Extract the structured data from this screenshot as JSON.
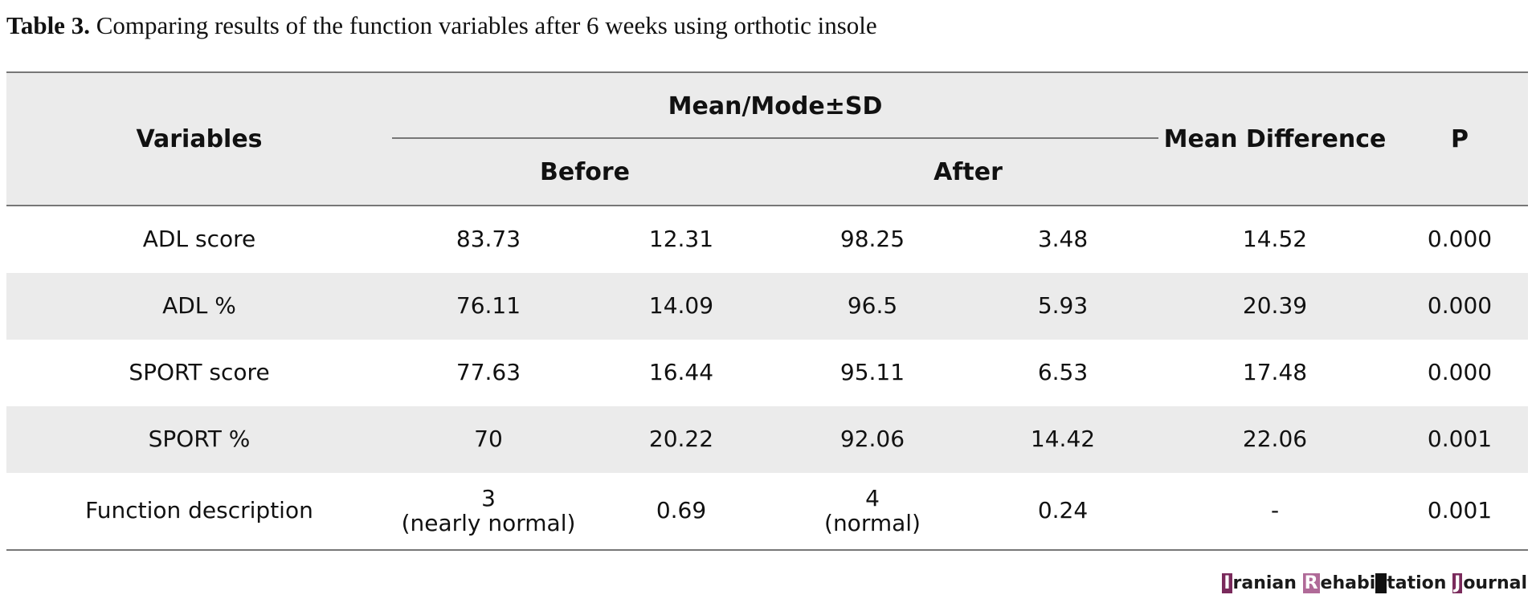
{
  "caption": {
    "label": "Table 3.",
    "text": "Comparing results of the function variables after 6 weeks using orthotic insole"
  },
  "header": {
    "variables": "Variables",
    "mean_mode_sd": "Mean/Mode±SD",
    "before": "Before",
    "after": "After",
    "mean_difference": "Mean Difference",
    "p": "P"
  },
  "rows": [
    {
      "variable": "ADL score",
      "before_mean": "83.73",
      "before_sd": "12.31",
      "after_mean": "98.25",
      "after_sd": "3.48",
      "mean_difference": "14.52",
      "p": "0.000"
    },
    {
      "variable": "ADL %",
      "before_mean": "76.11",
      "before_sd": "14.09",
      "after_mean": "96.5",
      "after_sd": "5.93",
      "mean_difference": "20.39",
      "p": "0.000"
    },
    {
      "variable": "SPORT score",
      "before_mean": "77.63",
      "before_sd": "16.44",
      "after_mean": "95.11",
      "after_sd": "6.53",
      "mean_difference": "17.48",
      "p": "0.000"
    },
    {
      "variable": "SPORT %",
      "before_mean": "70",
      "before_sd": "20.22",
      "after_mean": "92.06",
      "after_sd": "14.42",
      "mean_difference": "22.06",
      "p": "0.001"
    },
    {
      "variable": "Function description",
      "before_mean": "3",
      "before_mean_note": "(nearly normal)",
      "before_sd": "0.69",
      "after_mean": "4",
      "after_mean_note": "(normal)",
      "after_sd": "0.24",
      "mean_difference": "-",
      "p": "0.001"
    }
  ],
  "logo": {
    "i_cap": "I",
    "i_rest": "ranian ",
    "r_cap": "R",
    "r_rest1": "ehabi",
    "r_rest2": "tation ",
    "j_cap": "J",
    "j_rest": "ournal"
  }
}
